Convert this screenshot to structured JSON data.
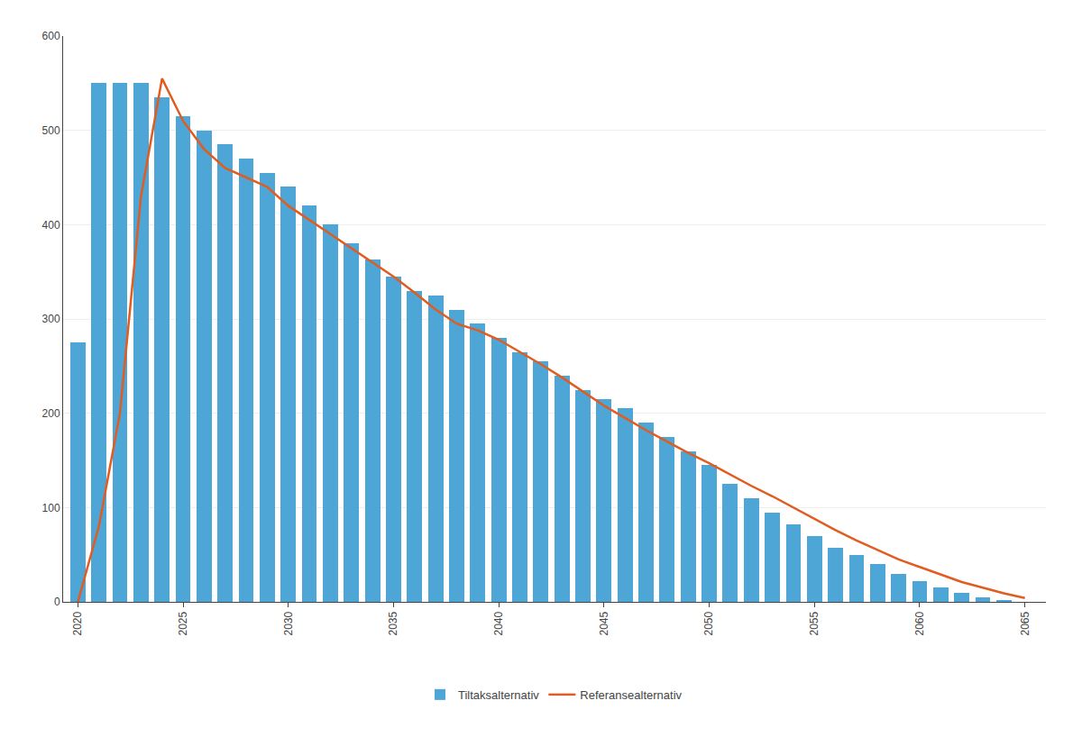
{
  "chart_data": {
    "type": "bar",
    "x": [
      2020,
      2021,
      2022,
      2023,
      2024,
      2025,
      2026,
      2027,
      2028,
      2029,
      2030,
      2031,
      2032,
      2033,
      2034,
      2035,
      2036,
      2037,
      2038,
      2039,
      2040,
      2041,
      2042,
      2043,
      2044,
      2045,
      2046,
      2047,
      2048,
      2049,
      2050,
      2051,
      2052,
      2053,
      2054,
      2055,
      2056,
      2057,
      2058,
      2059,
      2060,
      2061,
      2062,
      2063,
      2064,
      2065
    ],
    "series": [
      {
        "name": "Tiltaksalternativ",
        "type": "bar",
        "color": "#4DA6D6",
        "values": [
          275,
          550,
          550,
          550,
          535,
          515,
          500,
          485,
          470,
          455,
          440,
          420,
          400,
          380,
          363,
          345,
          330,
          325,
          310,
          295,
          280,
          265,
          255,
          240,
          225,
          215,
          205,
          190,
          175,
          160,
          145,
          125,
          110,
          95,
          82,
          70,
          57,
          50,
          40,
          30,
          22,
          15,
          10,
          5,
          2,
          0
        ]
      },
      {
        "name": "Referansealternativ",
        "type": "line",
        "color": "#E05C20",
        "values": [
          0,
          80,
          200,
          430,
          555,
          510,
          480,
          460,
          450,
          440,
          420,
          405,
          390,
          375,
          360,
          345,
          328,
          310,
          295,
          288,
          278,
          265,
          252,
          238,
          223,
          208,
          195,
          182,
          170,
          158,
          147,
          135,
          123,
          112,
          100,
          88,
          76,
          65,
          55,
          45,
          37,
          29,
          21,
          15,
          9,
          4
        ]
      }
    ],
    "xlim": [
      2019.3,
      2066.0
    ],
    "xticks": [
      2020,
      2025,
      2030,
      2035,
      2040,
      2045,
      2050,
      2055,
      2060,
      2065
    ],
    "ylim": [
      0,
      600
    ],
    "yticks": [
      0,
      100,
      200,
      300,
      400,
      500,
      600
    ],
    "grid": "y",
    "legend": "bottom"
  }
}
